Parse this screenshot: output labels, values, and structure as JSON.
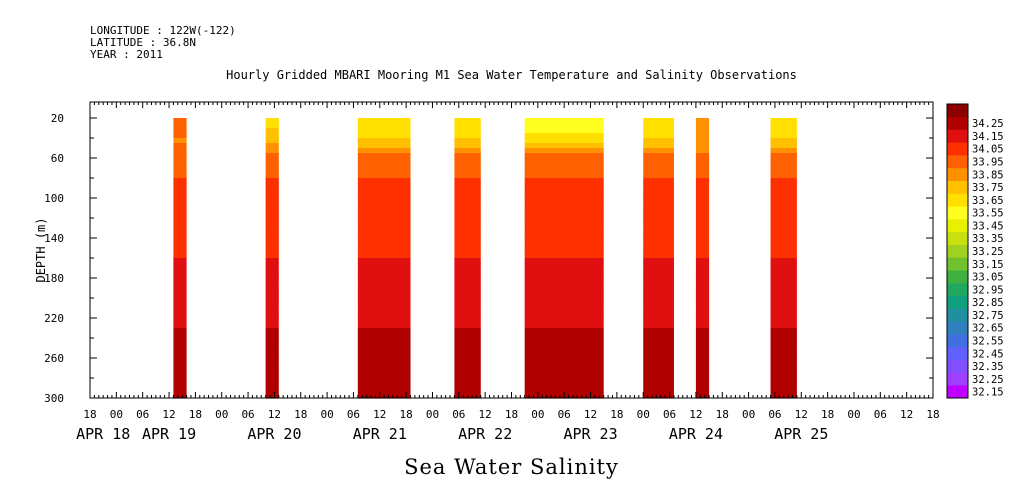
{
  "header": {
    "longitude": "LONGITUDE : 122W(-122)",
    "latitude": "LATITUDE : 36.8N",
    "year": "YEAR : 2011"
  },
  "title": "Hourly Gridded MBARI Mooring M1 Sea Water Temperature and Salinity Observations",
  "bottom_title": "Sea Water Salinity",
  "chart_data": {
    "type": "heatmap",
    "title": "Hourly Gridded MBARI Mooring M1 Sea Water Temperature and Salinity Observations",
    "xlabel": "",
    "ylabel": "DEPTH (m)",
    "variable": "Sea Water Salinity",
    "x_range_hours": [
      -6,
      186
    ],
    "x_origin": "2011-04-18 00:00",
    "y_range": [
      300,
      0
    ],
    "y_ticks": [
      20,
      60,
      100,
      140,
      180,
      220,
      260,
      300
    ],
    "x_hour_ticks": [
      "18",
      "00",
      "06",
      "12",
      "18",
      "00",
      "06",
      "12",
      "18",
      "00",
      "06",
      "12",
      "18",
      "00",
      "06",
      "12",
      "18",
      "00",
      "06",
      "12",
      "18",
      "00",
      "06",
      "12",
      "18",
      "00",
      "06",
      "12",
      "18",
      "00",
      "06",
      "12",
      "18"
    ],
    "x_date_labels": [
      {
        "label": "APR 18",
        "hour": -3
      },
      {
        "label": "APR 19",
        "hour": 12
      },
      {
        "label": "APR 20",
        "hour": 36
      },
      {
        "label": "APR 21",
        "hour": 60
      },
      {
        "label": "APR 22",
        "hour": 84
      },
      {
        "label": "APR 23",
        "hour": 108
      },
      {
        "label": "APR 24",
        "hour": 132
      },
      {
        "label": "APR 25",
        "hour": 156
      }
    ],
    "colorbar": {
      "levels": [
        "32.15",
        "32.25",
        "32.35",
        "32.45",
        "32.55",
        "32.65",
        "32.75",
        "32.85",
        "32.95",
        "33.05",
        "33.15",
        "33.25",
        "33.35",
        "33.45",
        "33.55",
        "33.65",
        "33.75",
        "33.85",
        "33.95",
        "34.05",
        "34.15",
        "34.25"
      ],
      "colors": [
        "#c000ff",
        "#a040ff",
        "#8050ff",
        "#6060ff",
        "#4070e0",
        "#3080c0",
        "#2090a0",
        "#10a080",
        "#20a860",
        "#40b040",
        "#70c030",
        "#a0d020",
        "#c8e010",
        "#e8f000",
        "#ffff20",
        "#ffe000",
        "#ffc000",
        "#ff9000",
        "#ff6000",
        "#ff3000",
        "#e01010",
        "#b00000",
        "#8c0000"
      ]
    },
    "data_segments": [
      {
        "start_hour": 13,
        "end_hour": 16,
        "surface_salinity": 33.95
      },
      {
        "start_hour": 34,
        "end_hour": 37,
        "surface_salinity": 33.65
      },
      {
        "start_hour": 55,
        "end_hour": 67,
        "surface_salinity": 33.55
      },
      {
        "start_hour": 77,
        "end_hour": 83,
        "surface_salinity": 33.55
      },
      {
        "start_hour": 93,
        "end_hour": 111,
        "surface_salinity": 33.45
      },
      {
        "start_hour": 120,
        "end_hour": 127,
        "surface_salinity": 33.55
      },
      {
        "start_hour": 132,
        "end_hour": 135,
        "surface_salinity": 33.85
      },
      {
        "start_hour": 149,
        "end_hour": 155,
        "surface_salinity": 33.55
      }
    ],
    "depth_profile": [
      {
        "depth": 20,
        "salinity": 33.55
      },
      {
        "depth": 40,
        "salinity": 33.75
      },
      {
        "depth": 60,
        "salinity": 33.9
      },
      {
        "depth": 80,
        "salinity": 33.95
      },
      {
        "depth": 120,
        "salinity": 33.95
      },
      {
        "depth": 160,
        "salinity": 34.05
      },
      {
        "depth": 200,
        "salinity": 34.05
      },
      {
        "depth": 230,
        "salinity": 34.15
      },
      {
        "depth": 260,
        "salinity": 34.25
      },
      {
        "depth": 300,
        "salinity": 34.15
      }
    ]
  }
}
